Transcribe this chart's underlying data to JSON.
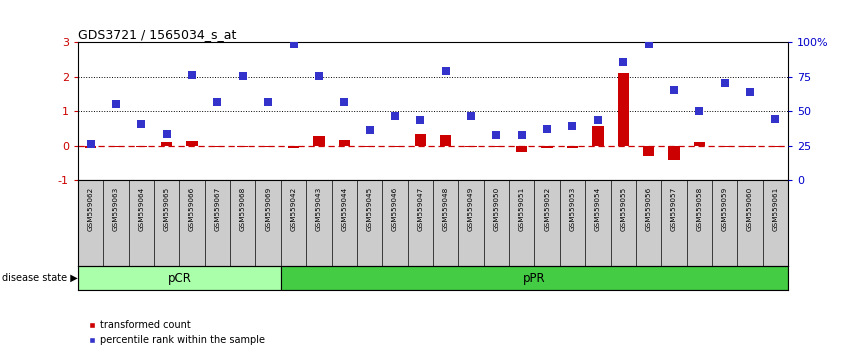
{
  "title": "GDS3721 / 1565034_s_at",
  "samples": [
    "GSM559062",
    "GSM559063",
    "GSM559064",
    "GSM559065",
    "GSM559066",
    "GSM559067",
    "GSM559068",
    "GSM559069",
    "GSM559042",
    "GSM559043",
    "GSM559044",
    "GSM559045",
    "GSM559046",
    "GSM559047",
    "GSM559048",
    "GSM559049",
    "GSM559050",
    "GSM559051",
    "GSM559052",
    "GSM559053",
    "GSM559054",
    "GSM559055",
    "GSM559056",
    "GSM559057",
    "GSM559058",
    "GSM559059",
    "GSM559060",
    "GSM559061"
  ],
  "transformed_count": [
    -0.07,
    -0.05,
    -0.05,
    0.12,
    0.15,
    -0.05,
    -0.05,
    -0.05,
    -0.07,
    0.27,
    0.18,
    -0.05,
    -0.05,
    0.35,
    0.32,
    -0.05,
    -0.05,
    -0.18,
    -0.07,
    -0.07,
    0.58,
    2.1,
    -0.3,
    -0.42,
    0.1,
    -0.05,
    -0.05,
    -0.05
  ],
  "percentile_rank": [
    0.05,
    1.22,
    0.62,
    0.35,
    2.05,
    1.28,
    2.02,
    1.27,
    2.95,
    2.02,
    1.28,
    0.47,
    0.87,
    0.75,
    2.17,
    0.87,
    0.32,
    0.3,
    0.48,
    0.57,
    0.75,
    2.42,
    2.95,
    1.62,
    1.02,
    1.82,
    1.55,
    0.77
  ],
  "group_pCR_count": 8,
  "group_pPR_count": 20,
  "bar_color": "#cc0000",
  "dot_color": "#3333cc",
  "zero_line_color": "#cc0000",
  "dotted_line_color": "#000000",
  "background_color": "#ffffff",
  "ylim_left": [
    -1,
    3
  ],
  "ylim_right": [
    0,
    100
  ],
  "yticks_left": [
    -1,
    0,
    1,
    2,
    3
  ],
  "yticks_right": [
    0,
    25,
    50,
    75,
    100
  ],
  "ylabel_right_labels": [
    "0",
    "25",
    "50",
    "75",
    "100%"
  ],
  "left_tick_color": "#cc0000",
  "right_tick_color": "#0000cc",
  "pCR_color": "#aaffaa",
  "pPR_color": "#44cc44",
  "label_transformed": "transformed count",
  "label_percentile": "percentile rank within the sample",
  "label_box_color": "#cccccc",
  "label_box_border": "#888888"
}
